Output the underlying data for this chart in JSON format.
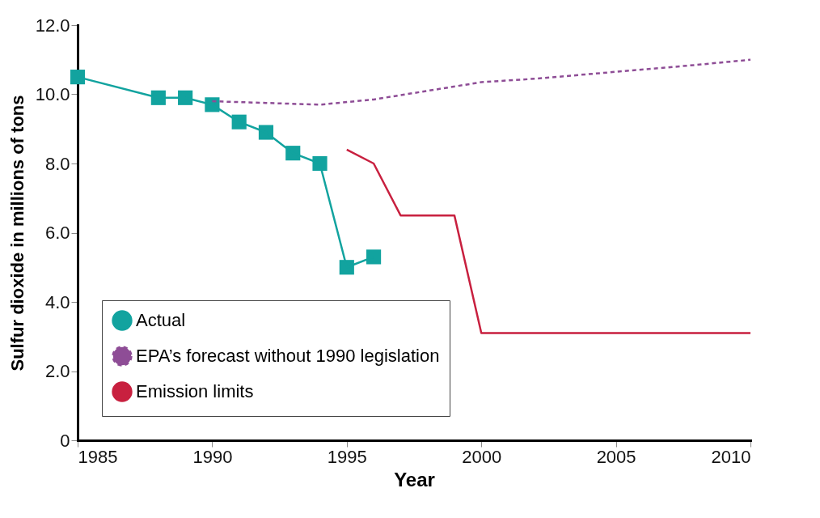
{
  "chart_data": {
    "type": "line",
    "xlabel": "Year",
    "ylabel": "Sulfur dioxide in millions of tons",
    "xlim": [
      1985,
      2010
    ],
    "xticks": [
      1985,
      1990,
      1995,
      2000,
      2005,
      2010
    ],
    "ylim": [
      0,
      12
    ],
    "yticks": [
      {
        "value": 0,
        "label": "0"
      },
      {
        "value": 2,
        "label": "2.0"
      },
      {
        "value": 4,
        "label": "4.0"
      },
      {
        "value": 6,
        "label": "6.0"
      },
      {
        "value": 8,
        "label": "8.0"
      },
      {
        "value": 10,
        "label": "10.0"
      },
      {
        "value": 12,
        "label": "12.0"
      }
    ],
    "grid": false,
    "legend": "bottom left",
    "series": [
      {
        "name": "Actual",
        "color": "#12a39f",
        "marker": "square",
        "line_style": "solid",
        "x": [
          1985,
          1988,
          1989,
          1990,
          1991,
          1992,
          1993,
          1994,
          1995,
          1996
        ],
        "values": [
          10.5,
          9.9,
          9.9,
          9.7,
          9.2,
          8.9,
          8.3,
          8.0,
          5.0,
          5.3
        ]
      },
      {
        "name": "EPA’s forecast without 1990 legislation",
        "color": "#8e4d96",
        "marker": "none",
        "line_style": "dashed",
        "x": [
          1990,
          1992,
          1994,
          1996,
          1998,
          2000,
          2002,
          2005,
          2008,
          2010
        ],
        "values": [
          9.8,
          9.75,
          9.7,
          9.85,
          10.1,
          10.35,
          10.45,
          10.65,
          10.85,
          11.0
        ]
      },
      {
        "name": "Emission limits",
        "color": "#c8203f",
        "marker": "none",
        "line_style": "solid",
        "x": [
          1995,
          1996,
          1997,
          1999,
          2000,
          2010
        ],
        "values": [
          8.4,
          8.0,
          6.5,
          6.5,
          3.1,
          3.1
        ]
      }
    ]
  }
}
